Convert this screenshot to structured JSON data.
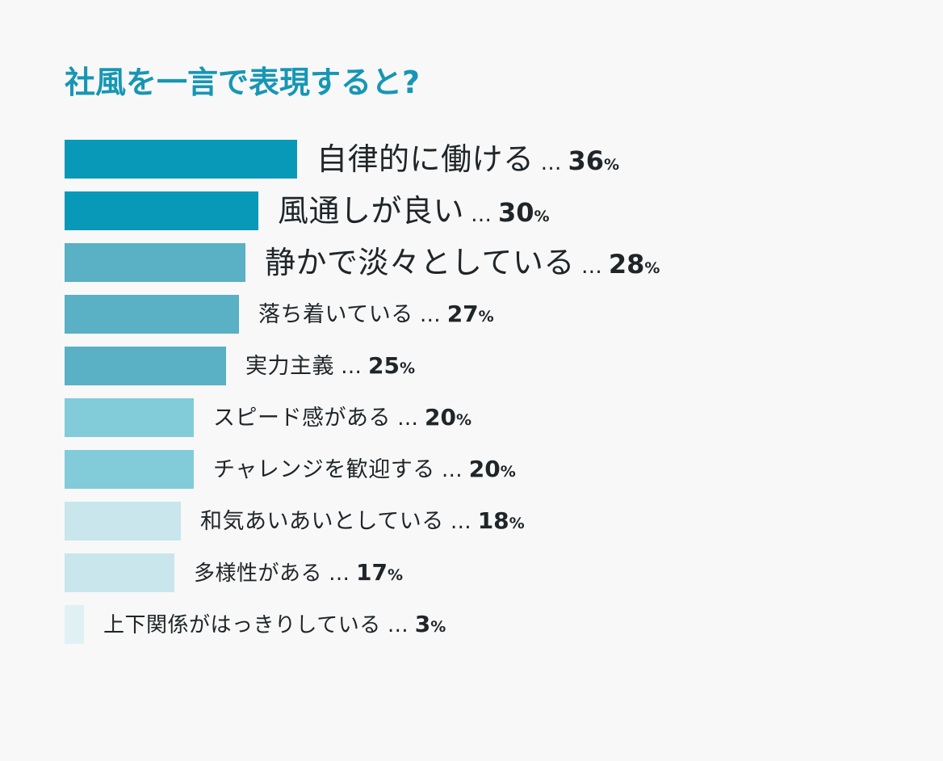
{
  "chart_data": {
    "type": "bar",
    "orientation": "horizontal",
    "title": "社風を一言で表現すると?",
    "unit": "%",
    "separator": "…",
    "categories": [
      "自律的に働ける",
      "風通しが良い",
      "静かで淡々としている",
      "落ち着いている",
      "実力主義",
      "スピード感がある",
      "チャレンジを歓迎する",
      "和気あいあいとしている",
      "多様性がある",
      "上下関係がはっきりしている"
    ],
    "values": [
      36,
      30,
      28,
      27,
      25,
      20,
      20,
      18,
      17,
      3
    ],
    "colors": [
      "#0899b8",
      "#0899b8",
      "#5ab0c4",
      "#5ab0c4",
      "#5ab0c4",
      "#82cbd8",
      "#82cbd8",
      "#c9e6ec",
      "#c9e6ec",
      "#e1f0f3"
    ],
    "title_color": "#1796b4",
    "text_color": "#1f2528"
  }
}
